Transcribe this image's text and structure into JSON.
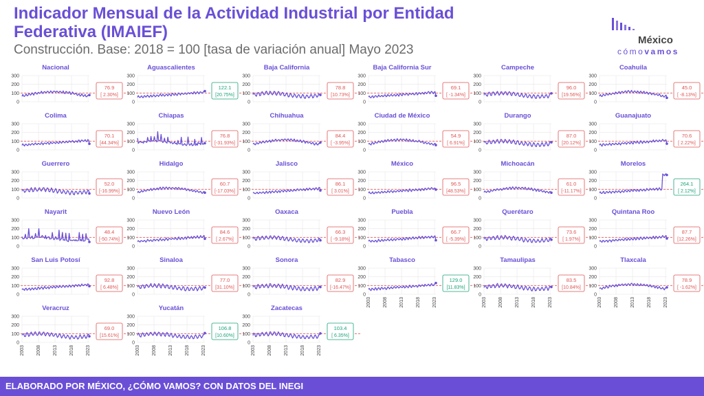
{
  "header": {
    "title": "Indicador Mensual de la Actividad Industrial por Entidad Federativa (IMAIEF)",
    "subtitle": "Construcción. Base: 2018 = 100 [tasa de variación anual] Mayo 2023"
  },
  "logo": {
    "word1": "México",
    "word2a": "cómo",
    "word2b": "vamos"
  },
  "footer": {
    "text": "ELABORADO POR MÉXICO, ¿CÓMO VAMOS? CON DATOS DEL INEGI"
  },
  "colors": {
    "accent": "#6a4fd6",
    "line": "#6a4fd6",
    "reference": "#e05555",
    "negative": "#e05555",
    "positive": "#1aa37a",
    "grid": "#e6e6e6"
  },
  "chart_data": {
    "type": "line",
    "layout": "small-multiples",
    "x_ticks": [
      "2003",
      "2008",
      "2013",
      "2018",
      "2023"
    ],
    "x_range": [
      2003,
      2023.4
    ],
    "y_ticks": [
      "0",
      "100",
      "200",
      "300"
    ],
    "ylim": [
      0,
      300
    ],
    "reference_line": 100,
    "panels": [
      {
        "name": "Nacional",
        "value": "76.9",
        "change": "[ 2.30%]",
        "status": "neg",
        "shape": "hump"
      },
      {
        "name": "Aguascalientes",
        "value": "122.1",
        "change": "[20.75%]",
        "status": "pos",
        "shape": "rising"
      },
      {
        "name": "Baja California",
        "value": "78.8",
        "change": "[10.73%]",
        "status": "neg",
        "shape": "waves"
      },
      {
        "name": "Baja California Sur",
        "value": "69.1",
        "change": "[ -1.34%]",
        "status": "neg",
        "shape": "rising"
      },
      {
        "name": "Campeche",
        "value": "96.0",
        "change": "[19.56%]",
        "status": "neg",
        "shape": "waves"
      },
      {
        "name": "Coahuila",
        "value": "45.0",
        "change": "[ -8.13%]",
        "status": "neg",
        "shape": "hump"
      },
      {
        "name": "Colima",
        "value": "70.1",
        "change": "[44.34%]",
        "status": "neg",
        "shape": "rising"
      },
      {
        "name": "Chiapas",
        "value": "76.8",
        "change": "[-31.93%]",
        "status": "neg",
        "shape": "spiky"
      },
      {
        "name": "Chihuahua",
        "value": "84.4",
        "change": "[ -3.95%]",
        "status": "neg",
        "shape": "hump"
      },
      {
        "name": "Ciudad de México",
        "value": "54.9",
        "change": "[ 6.91%]",
        "status": "neg",
        "shape": "hump"
      },
      {
        "name": "Durango",
        "value": "87.0",
        "change": "[20.12%]",
        "status": "neg",
        "shape": "waves"
      },
      {
        "name": "Guanajuato",
        "value": "70.6",
        "change": "[ 2.22%]",
        "status": "neg",
        "shape": "rising"
      },
      {
        "name": "Guerrero",
        "value": "52.0",
        "change": "[-16.99%]",
        "status": "neg",
        "shape": "waves"
      },
      {
        "name": "Hidalgo",
        "value": "60.7",
        "change": "[-17.03%]",
        "status": "neg",
        "shape": "hump"
      },
      {
        "name": "Jalisco",
        "value": "86.1",
        "change": "[ 3.01%]",
        "status": "neg",
        "shape": "rising"
      },
      {
        "name": "México",
        "value": "96.5",
        "change": "[48.53%]",
        "status": "neg",
        "shape": "rising"
      },
      {
        "name": "Michoacán",
        "value": "61.0",
        "change": "[-11.17%]",
        "status": "neg",
        "shape": "hump"
      },
      {
        "name": "Morelos",
        "value": "264.1",
        "change": "[ 2.12%]",
        "status": "pos",
        "shape": "surge"
      },
      {
        "name": "Nayarit",
        "value": "48.4",
        "change": "[-50.74%]",
        "status": "neg",
        "shape": "spiky"
      },
      {
        "name": "Nuevo León",
        "value": "84.6",
        "change": "[ 2.67%]",
        "status": "neg",
        "shape": "rising"
      },
      {
        "name": "Oaxaca",
        "value": "66.3",
        "change": "[ -9.18%]",
        "status": "neg",
        "shape": "waves"
      },
      {
        "name": "Puebla",
        "value": "66.7",
        "change": "[ -5.39%]",
        "status": "neg",
        "shape": "rising"
      },
      {
        "name": "Querétaro",
        "value": "73.6",
        "change": "[ 1.97%]",
        "status": "neg",
        "shape": "waves"
      },
      {
        "name": "Quintana Roo",
        "value": "87.7",
        "change": "[12.26%]",
        "status": "neg",
        "shape": "rising"
      },
      {
        "name": "San Luis Potosí",
        "value": "92.8",
        "change": "[ 6.48%]",
        "status": "neg",
        "shape": "rising"
      },
      {
        "name": "Sinaloa",
        "value": "77.0",
        "change": "[31.10%]",
        "status": "neg",
        "shape": "waves"
      },
      {
        "name": "Sonora",
        "value": "82.9",
        "change": "[-16.47%]",
        "status": "neg",
        "shape": "waves"
      },
      {
        "name": "Tabasco",
        "value": "129.0",
        "change": "[11.83%]",
        "status": "pos",
        "shape": "rising"
      },
      {
        "name": "Tamaulipas",
        "value": "83.5",
        "change": "[10.84%]",
        "status": "neg",
        "shape": "waves"
      },
      {
        "name": "Tlaxcala",
        "value": "78.9",
        "change": "[ -1.62%]",
        "status": "neg",
        "shape": "hump"
      },
      {
        "name": "Veracruz",
        "value": "69.0",
        "change": "[15.61%]",
        "status": "neg",
        "shape": "waves"
      },
      {
        "name": "Yucatán",
        "value": "106.8",
        "change": "[10.60%]",
        "status": "pos",
        "shape": "waves"
      },
      {
        "name": "Zacatecas",
        "value": "103.4",
        "change": "[ 6.35%]",
        "status": "pos",
        "shape": "waves"
      }
    ]
  }
}
